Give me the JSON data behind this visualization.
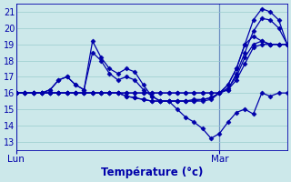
{
  "xlabel": "Température (°c)",
  "background_color": "#cce8ea",
  "grid_color": "#99cccc",
  "line_color": "#0000aa",
  "marker": "D",
  "markersize": 2.5,
  "linewidth": 0.9,
  "ylim": [
    12.5,
    21.5
  ],
  "xlim": [
    0,
    32
  ],
  "yticks": [
    13,
    14,
    15,
    16,
    17,
    18,
    19,
    20,
    21
  ],
  "xtick_positions": [
    0,
    24
  ],
  "xtick_labels": [
    "Lun",
    "Mar"
  ],
  "vlines": [
    0,
    24
  ],
  "series": {
    "line1_x": [
      0,
      1,
      2,
      3,
      4,
      5,
      6,
      7,
      8,
      9,
      10,
      11,
      12,
      13,
      14,
      15,
      16,
      17,
      18,
      19,
      20,
      21,
      22,
      23,
      24,
      25,
      26,
      27,
      28,
      29,
      30,
      31,
      32
    ],
    "line1_y": [
      16,
      16,
      16,
      16,
      16,
      16,
      16,
      16,
      16,
      16,
      16,
      16,
      16,
      16,
      16,
      16,
      16,
      16,
      16,
      16,
      16,
      16,
      16,
      16,
      16,
      16.5,
      17.5,
      19.0,
      20.5,
      21.2,
      21.0,
      20.5,
      19.0
    ],
    "line2_x": [
      0,
      1,
      2,
      3,
      4,
      5,
      6,
      7,
      8,
      9,
      10,
      11,
      12,
      13,
      14,
      15,
      16,
      17,
      18,
      19,
      20,
      21,
      22,
      23,
      24,
      25,
      26,
      27,
      28,
      29,
      30,
      31,
      32
    ],
    "line2_y": [
      16,
      16,
      16,
      16,
      16,
      16,
      16,
      16,
      16,
      16,
      16,
      16,
      16,
      16,
      16,
      16,
      16,
      16,
      16,
      16,
      16,
      16,
      16,
      16,
      16,
      16.2,
      17.2,
      18.5,
      19.8,
      20.6,
      20.5,
      20.0,
      19.0
    ],
    "line3_x": [
      0,
      1,
      2,
      3,
      4,
      5,
      6,
      7,
      8,
      9,
      10,
      11,
      12,
      13,
      14,
      15,
      16,
      17,
      18,
      19,
      20,
      21,
      22,
      23,
      24,
      25,
      26,
      27,
      28,
      29,
      30,
      31,
      32
    ],
    "line3_y": [
      16,
      16,
      16,
      16,
      16.2,
      16.8,
      17.0,
      16.5,
      16.2,
      19.2,
      18.2,
      17.5,
      17.2,
      17.5,
      17.3,
      16.5,
      15.8,
      15.5,
      15.5,
      15.5,
      15.5,
      15.6,
      15.6,
      15.7,
      16.0,
      16.5,
      17.5,
      19.0,
      19.5,
      19.2,
      19.0,
      19.0,
      19.0
    ],
    "line4_x": [
      0,
      1,
      2,
      3,
      4,
      5,
      6,
      7,
      8,
      9,
      10,
      11,
      12,
      13,
      14,
      15,
      16,
      17,
      18,
      19,
      20,
      21,
      22,
      23,
      24,
      25,
      26,
      27,
      28,
      29,
      30,
      31,
      32
    ],
    "line4_y": [
      16,
      16,
      16,
      16,
      16.2,
      16.8,
      17.0,
      16.5,
      16.2,
      18.5,
      18.0,
      17.2,
      16.8,
      17.0,
      16.8,
      16.2,
      15.8,
      15.5,
      15.5,
      15.5,
      15.5,
      15.5,
      15.6,
      15.7,
      16.0,
      16.3,
      17.0,
      18.2,
      19.0,
      19.2,
      19.0,
      19.0,
      19.0
    ],
    "line5_x": [
      0,
      1,
      2,
      3,
      4,
      5,
      6,
      7,
      8,
      9,
      10,
      11,
      12,
      13,
      14,
      15,
      16,
      17,
      18,
      19,
      20,
      21,
      22,
      23,
      24,
      25,
      26,
      27,
      28,
      29,
      30,
      31,
      32
    ],
    "line5_y": [
      16,
      16,
      16,
      16,
      16,
      16,
      16,
      16,
      16,
      16,
      16,
      16,
      16,
      15.8,
      15.7,
      15.6,
      15.5,
      15.5,
      15.5,
      15.5,
      15.5,
      15.5,
      15.5,
      15.6,
      16.0,
      16.2,
      16.8,
      17.8,
      18.8,
      19.0,
      19.0,
      19.0,
      19.0
    ],
    "line6_x": [
      0,
      1,
      2,
      3,
      4,
      5,
      6,
      7,
      8,
      9,
      10,
      11,
      12,
      13,
      14,
      15,
      16,
      17,
      18,
      19,
      20,
      21,
      22,
      23,
      24,
      25,
      26,
      27,
      28,
      29,
      30,
      31,
      32
    ],
    "line6_y": [
      16,
      16,
      16,
      16,
      16,
      16,
      16,
      16,
      16,
      16,
      16,
      16,
      16,
      15.8,
      15.7,
      15.6,
      15.5,
      15.5,
      15.5,
      15.0,
      14.5,
      14.2,
      13.8,
      13.2,
      13.5,
      14.2,
      14.8,
      15.0,
      14.7,
      16.0,
      15.8,
      16.0,
      16.0
    ]
  }
}
